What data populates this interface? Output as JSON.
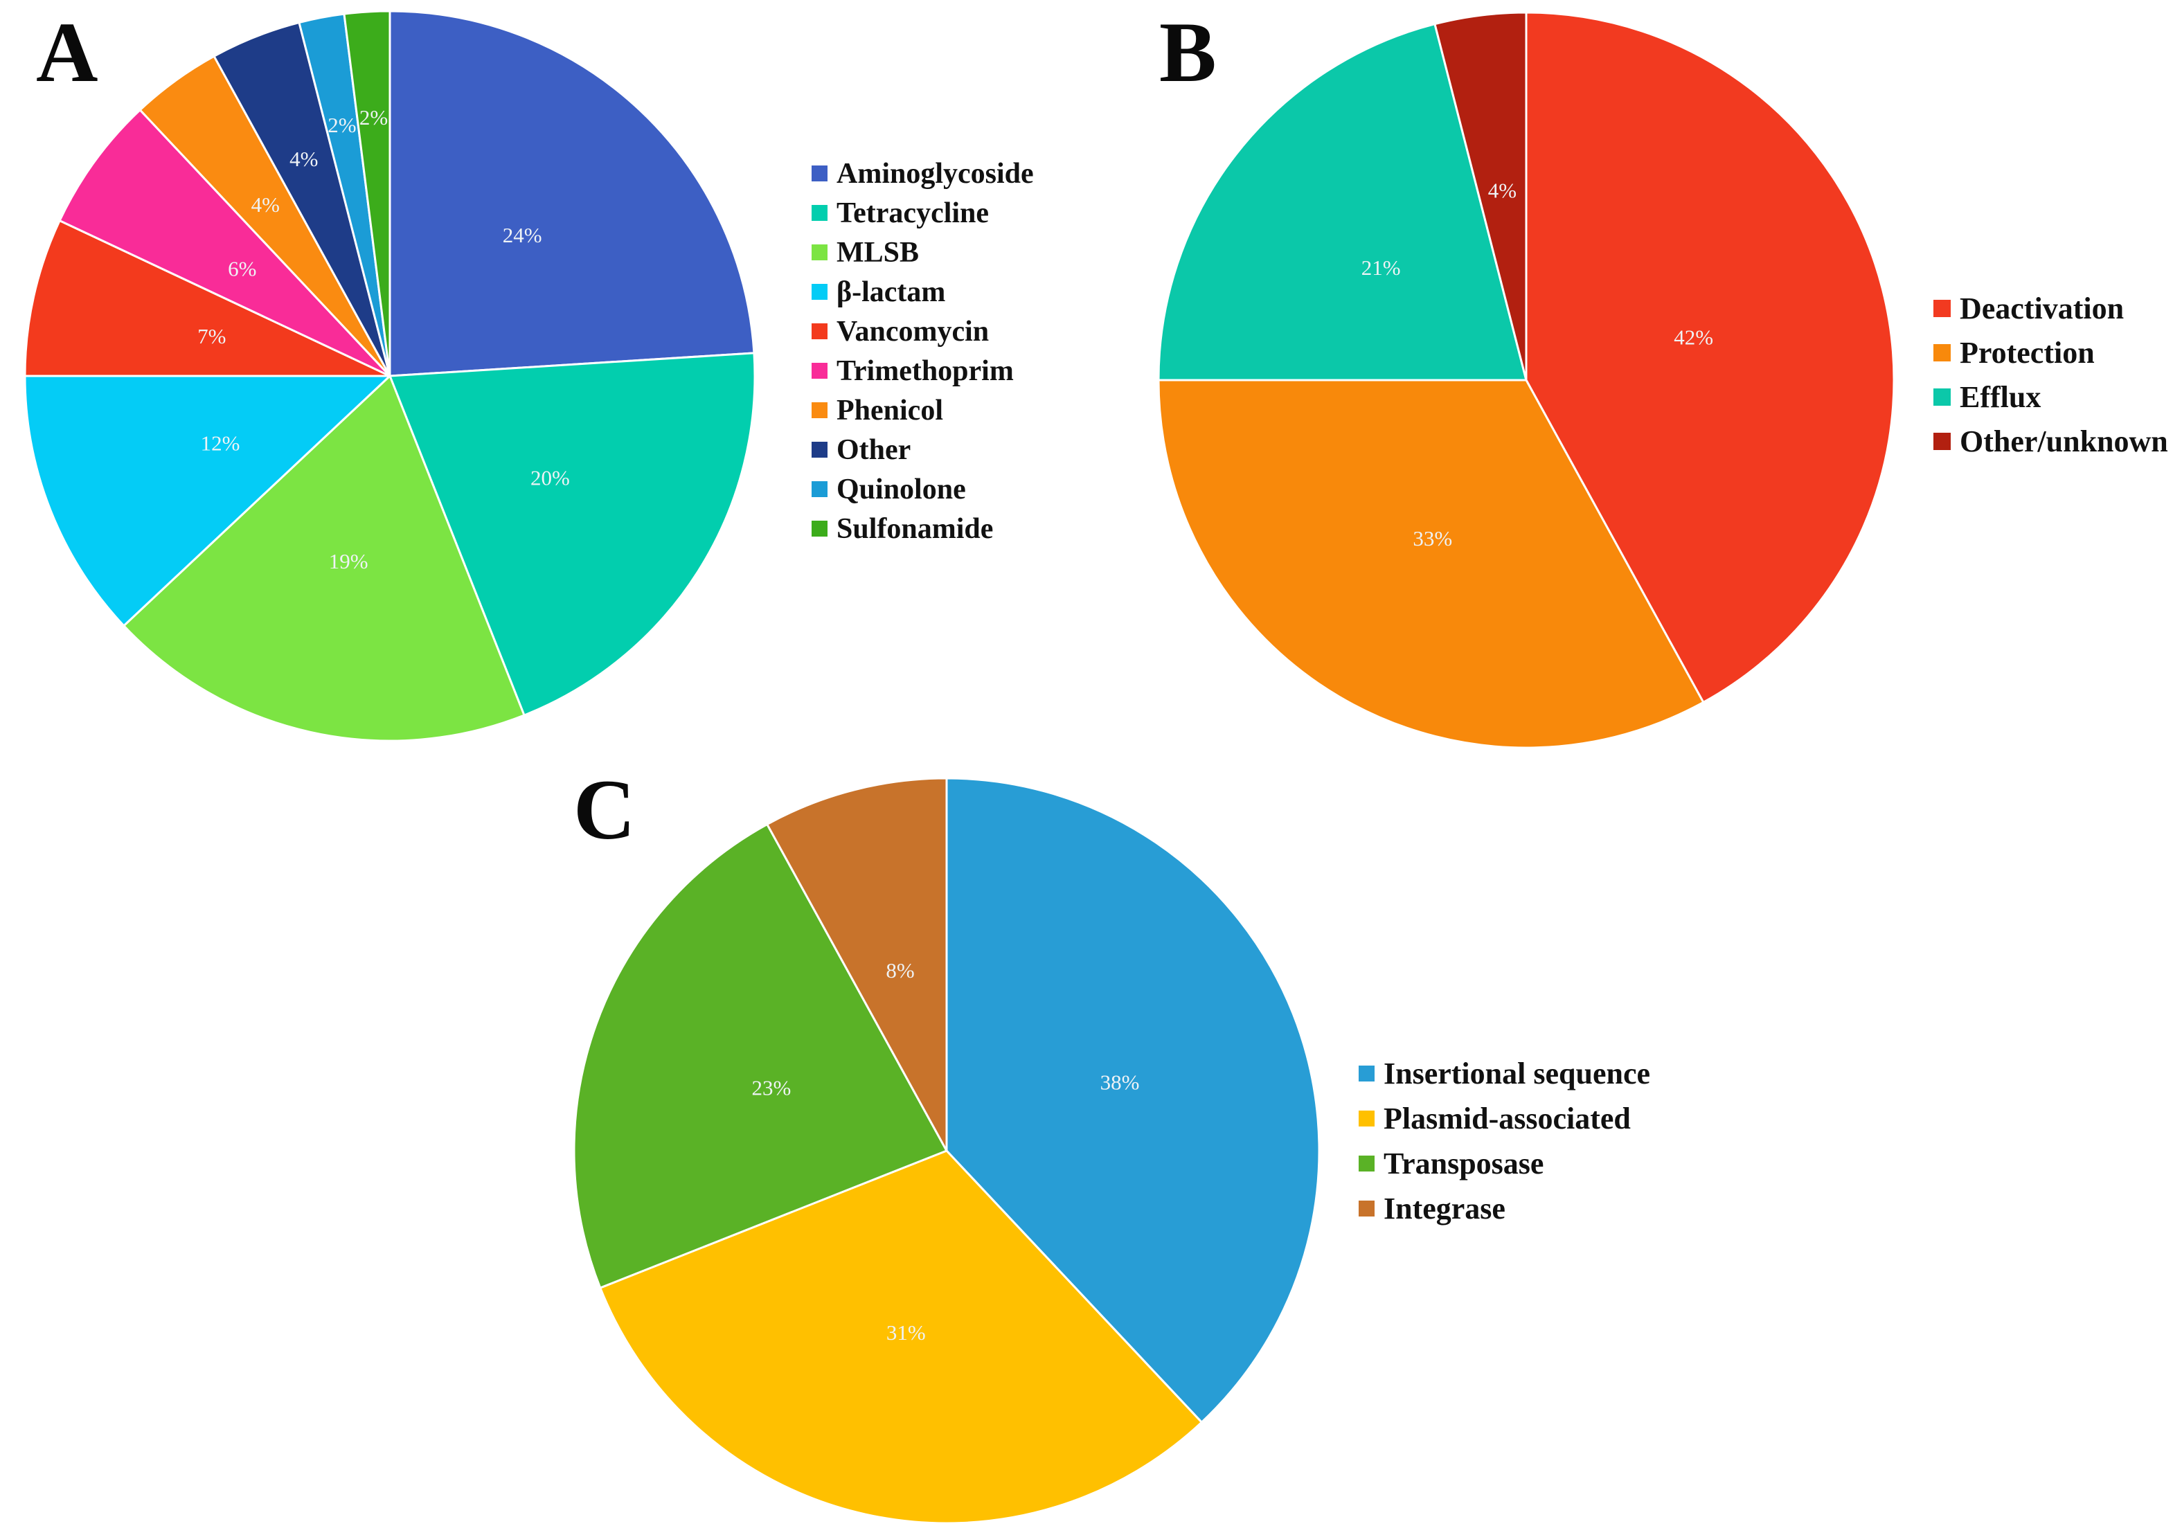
{
  "figure": {
    "background_color": "#ffffff",
    "slice_separator_color": "#ffffff",
    "percent_label_color": "#EFF3F6",
    "panel_letter_color": "#0a0a0a"
  },
  "chart_data": [
    {
      "type": "pie",
      "panel_label": "A",
      "title": "",
      "legend_position": "right",
      "start_angle_deg": 0,
      "direction": "clockwise",
      "categories": [
        "Aminoglycoside",
        "Tetracycline",
        "MLSB",
        "β-lactam",
        "Vancomycin",
        "Trimethoprim",
        "Phenicol",
        "Other",
        "Quinolone",
        "Sulfonamide"
      ],
      "values": [
        24,
        20,
        19,
        12,
        7,
        6,
        4,
        4,
        2,
        2
      ],
      "slices": [
        {
          "category": "Aminoglycoside",
          "value_pct": 24,
          "label": "24%",
          "color": "#3D5FC4",
          "label_r": 0.53
        },
        {
          "category": "Tetracycline",
          "value_pct": 20,
          "label": "20%",
          "color": "#02CEAE",
          "label_r": 0.52
        },
        {
          "category": "MLSB",
          "value_pct": 19,
          "label": "19%",
          "color": "#7CE443",
          "label_r": 0.52
        },
        {
          "category": "β-lactam",
          "value_pct": 12,
          "label": "12%",
          "color": "#04CCF6",
          "label_r": 0.5
        },
        {
          "category": "Vancomycin",
          "value_pct": 7,
          "label": "7%",
          "color": "#F33A1D",
          "label_r": 0.5
        },
        {
          "category": "Trimethoprim",
          "value_pct": 6,
          "label": "6%",
          "color": "#F92C98",
          "label_r": 0.5
        },
        {
          "category": "Phenicol",
          "value_pct": 4,
          "label": "4%",
          "color": "#FA8B11",
          "label_r": 0.58
        },
        {
          "category": "Other",
          "value_pct": 4,
          "label": "4%",
          "color": "#1E3C88",
          "label_r": 0.64
        },
        {
          "category": "Quinolone",
          "value_pct": 2,
          "label": "2%",
          "color": "#1B9CD6",
          "label_r": 0.7
        },
        {
          "category": "Sulfonamide",
          "value_pct": 2,
          "label": "2%",
          "color": "#3CAC1B",
          "label_r": 0.71
        }
      ]
    },
    {
      "type": "pie",
      "panel_label": "B",
      "title": "",
      "legend_position": "right",
      "start_angle_deg": 0,
      "direction": "clockwise",
      "categories": [
        "Deactivation",
        "Protection",
        "Efflux",
        "Other/unknown"
      ],
      "values": [
        42,
        33,
        21,
        4
      ],
      "slices": [
        {
          "category": "Deactivation",
          "value_pct": 42,
          "label": "42%",
          "color": "#F23A20",
          "label_r": 0.47
        },
        {
          "category": "Protection",
          "value_pct": 33,
          "label": "33%",
          "color": "#F8890B",
          "label_r": 0.5
        },
        {
          "category": "Efflux",
          "value_pct": 21,
          "label": "21%",
          "color": "#0BC8A9",
          "label_r": 0.5
        },
        {
          "category": "Other/unknown",
          "value_pct": 4,
          "label": "4%",
          "color": "#B22010",
          "label_r": 0.52
        }
      ]
    },
    {
      "type": "pie",
      "panel_label": "C",
      "title": "",
      "legend_position": "right",
      "start_angle_deg": 0,
      "direction": "clockwise",
      "categories": [
        "Insertional sequence",
        "Plasmid-associated",
        "Transposase",
        "Integrase"
      ],
      "values": [
        38,
        31,
        23,
        8
      ],
      "slices": [
        {
          "category": "Insertional sequence",
          "value_pct": 38,
          "label": "38%",
          "color": "#289DD5",
          "label_r": 0.5
        },
        {
          "category": "Plasmid-associated",
          "value_pct": 31,
          "label": "31%",
          "color": "#FFC000",
          "label_r": 0.5
        },
        {
          "category": "Transposase",
          "value_pct": 23,
          "label": "23%",
          "color": "#5AB226",
          "label_r": 0.5
        },
        {
          "category": "Integrase",
          "value_pct": 8,
          "label": "8%",
          "color": "#C8732B",
          "label_r": 0.5
        }
      ]
    }
  ]
}
